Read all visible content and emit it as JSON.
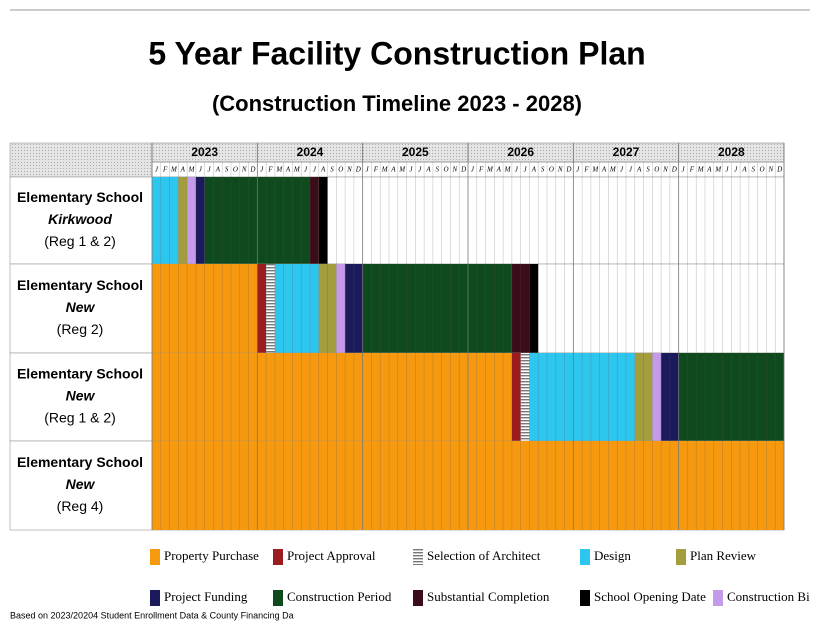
{
  "title": "5 Year Facility Construction Plan",
  "subtitle": "(Construction Timeline 2023 - 2028)",
  "years": [
    "2023",
    "2024",
    "2025",
    "2026",
    "2027",
    "2028"
  ],
  "months": [
    "J",
    "F",
    "M",
    "A",
    "M",
    "J",
    "J",
    "A",
    "S",
    "O",
    "N",
    "D"
  ],
  "legend": [
    {
      "name": "Property Purchase",
      "color": "#f6990f"
    },
    {
      "name": "Project Approval",
      "color": "#9b1b1e"
    },
    {
      "name": "Selection of Architect",
      "color": "#9a9a9a"
    },
    {
      "name": "Design",
      "color": "#2cc6ef"
    },
    {
      "name": "Plan Review",
      "color": "#a39d3e"
    },
    {
      "name": "Project Funding",
      "color": "#1b1a5a"
    },
    {
      "name": "Construction Period",
      "color": "#0f4a1d"
    },
    {
      "name": "Substantial Completion",
      "color": "#3b0c19"
    },
    {
      "name": "School Opening Date",
      "color": "#000000"
    },
    {
      "name": "Construction Bi",
      "color": "#c49ae9"
    }
  ],
  "rows": [
    {
      "label": [
        "Elementary School",
        "Kirkwood",
        "(Reg 1 & 2)"
      ],
      "segments": [
        {
          "phase": "Design",
          "start": 0,
          "length": 3
        },
        {
          "phase": "Plan Review",
          "start": 3,
          "length": 1
        },
        {
          "phase": "Construction Bi",
          "start": 4,
          "length": 1
        },
        {
          "phase": "Project Funding",
          "start": 5,
          "length": 1
        },
        {
          "phase": "Construction Period",
          "start": 6,
          "length": 12
        },
        {
          "phase": "Substantial Completion",
          "start": 18,
          "length": 1
        },
        {
          "phase": "School Opening Date",
          "start": 19,
          "length": 1
        }
      ]
    },
    {
      "label": [
        "Elementary School",
        "New",
        "(Reg 2)"
      ],
      "segments": [
        {
          "phase": "Property Purchase",
          "start": 0,
          "length": 12
        },
        {
          "phase": "Project Approval",
          "start": 12,
          "length": 1
        },
        {
          "phase": "Selection of Architect",
          "start": 13,
          "length": 1
        },
        {
          "phase": "Design",
          "start": 14,
          "length": 5
        },
        {
          "phase": "Plan Review",
          "start": 19,
          "length": 2
        },
        {
          "phase": "Construction Bi",
          "start": 21,
          "length": 1
        },
        {
          "phase": "Project Funding",
          "start": 22,
          "length": 2
        },
        {
          "phase": "Construction Period",
          "start": 24,
          "length": 17
        },
        {
          "phase": "Substantial Completion",
          "start": 41,
          "length": 2
        },
        {
          "phase": "School Opening Date",
          "start": 43,
          "length": 1
        }
      ]
    },
    {
      "label": [
        "Elementary School",
        "New",
        "(Reg 1 & 2)"
      ],
      "segments": [
        {
          "phase": "Property Purchase",
          "start": 0,
          "length": 41
        },
        {
          "phase": "Project Approval",
          "start": 41,
          "length": 1
        },
        {
          "phase": "Selection of Architect",
          "start": 42,
          "length": 1
        },
        {
          "phase": "Design",
          "start": 43,
          "length": 12
        },
        {
          "phase": "Plan Review",
          "start": 55,
          "length": 2
        },
        {
          "phase": "Construction Bi",
          "start": 57,
          "length": 1
        },
        {
          "phase": "Project Funding",
          "start": 58,
          "length": 2
        },
        {
          "phase": "Construction Period",
          "start": 60,
          "length": 12
        }
      ]
    },
    {
      "label": [
        "Elementary School",
        "New",
        "(Reg 4)"
      ],
      "segments": [
        {
          "phase": "Property Purchase",
          "start": 0,
          "length": 72
        }
      ]
    }
  ],
  "footnote": "Based on 2023/20204 Student Enrollment Data & County Financing Da"
}
